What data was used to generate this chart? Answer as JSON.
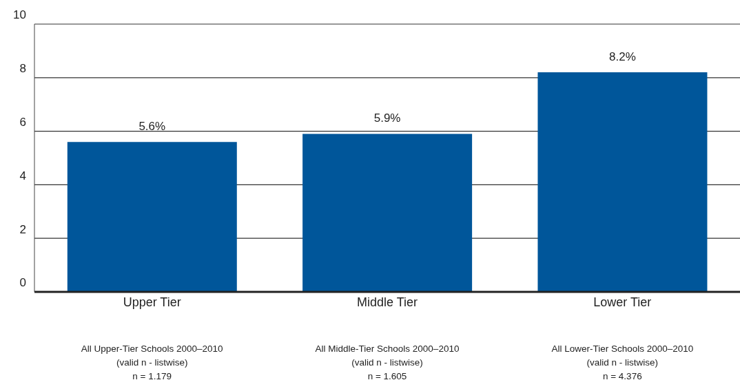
{
  "chart_data": {
    "type": "bar",
    "categories": [
      "Upper Tier",
      "Middle Tier",
      "Lower Tier"
    ],
    "values": [
      5.6,
      5.9,
      8.2
    ],
    "value_labels": [
      "5.6%",
      "5.9%",
      "8.2%"
    ],
    "color": "#00569a",
    "ylim": [
      0,
      10
    ],
    "yticks": [
      0,
      2,
      4,
      6,
      8,
      10
    ],
    "grid": "y",
    "annotations": [
      "All Upper-Tier Schools 2000–2010\n(valid n - listwise)\nn = 1.179",
      "All Middle-Tier Schools 2000–2010\n(valid n - listwise)\nn = 1.605",
      "All Lower-Tier Schools 2000–2010\n(valid n - listwise)\nn = 4.376"
    ]
  }
}
